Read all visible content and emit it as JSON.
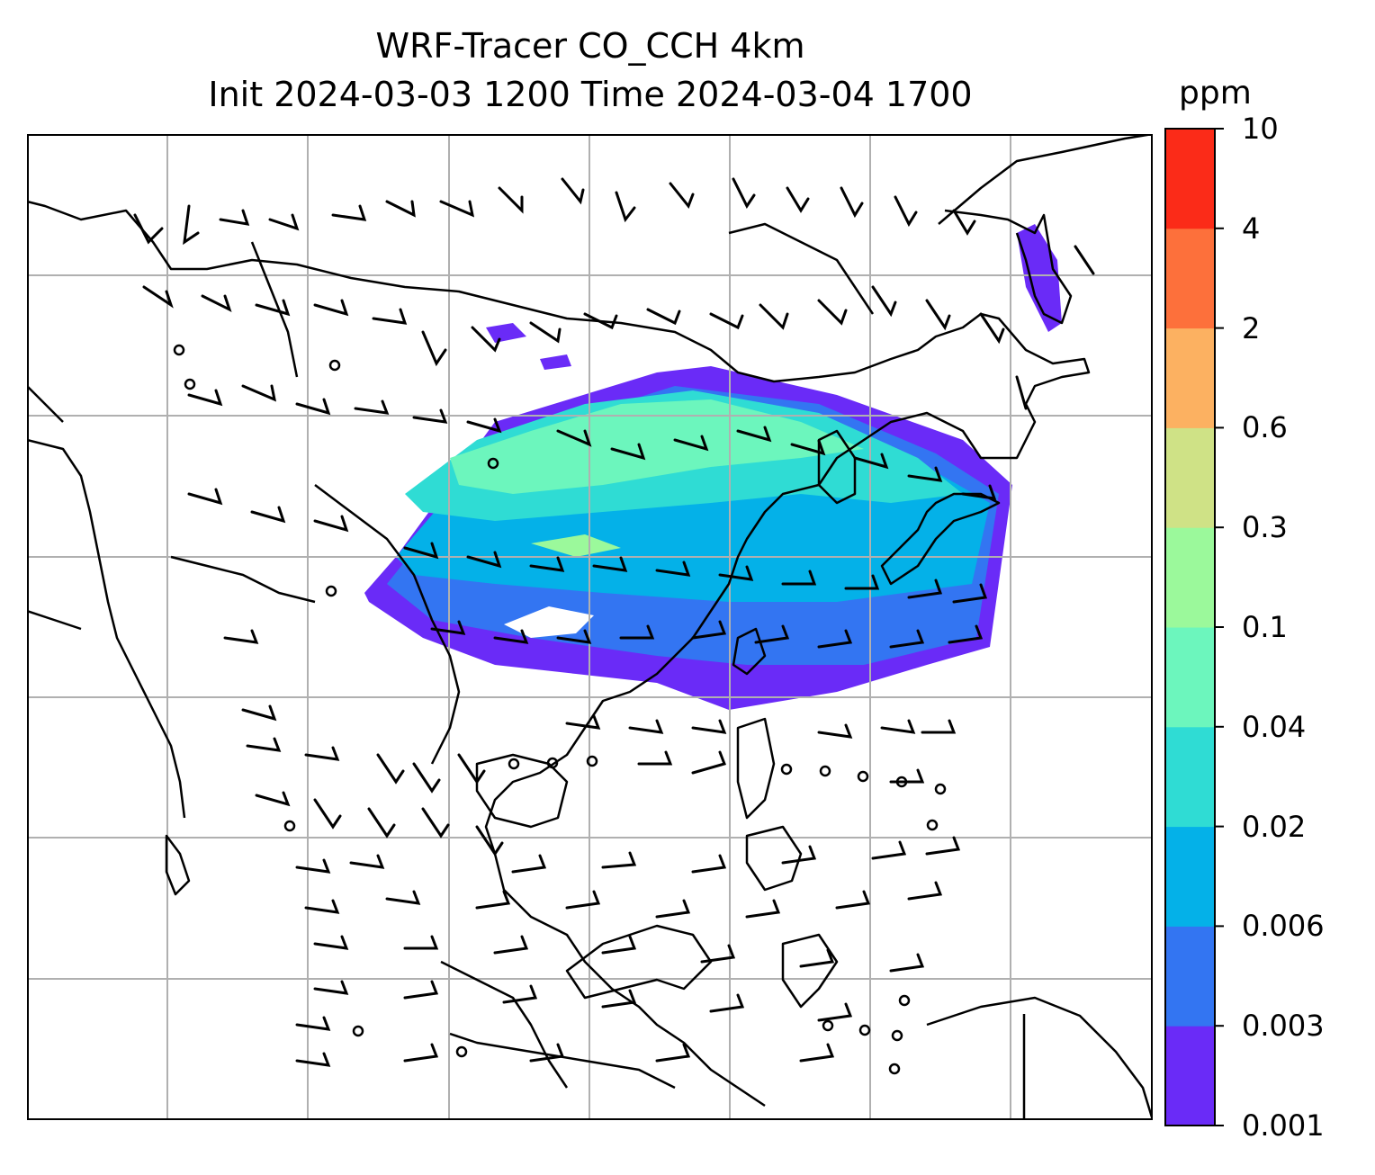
{
  "title": {
    "line1": "WRF-Tracer CO_CCH 4km",
    "line2": "Init 2024-03-03 1200 Time 2024-03-04 1700"
  },
  "colorbar": {
    "label": "ppm",
    "ticks": [
      "0.001",
      "0.003",
      "0.006",
      "0.02",
      "0.04",
      "0.1",
      "0.3",
      "0.6",
      "2",
      "4",
      "10"
    ],
    "colors": [
      "#6a2bf7",
      "#3375f2",
      "#04b1e8",
      "#2fdcd4",
      "#6cf6bd",
      "#9bf99b",
      "#cfe286",
      "#fcb161",
      "#fd703b",
      "#fb2b18"
    ]
  },
  "map": {
    "gridlines": true,
    "grid_color": "#b0b0b0",
    "coastline_color": "#000000",
    "wind_barbs": "black"
  }
}
